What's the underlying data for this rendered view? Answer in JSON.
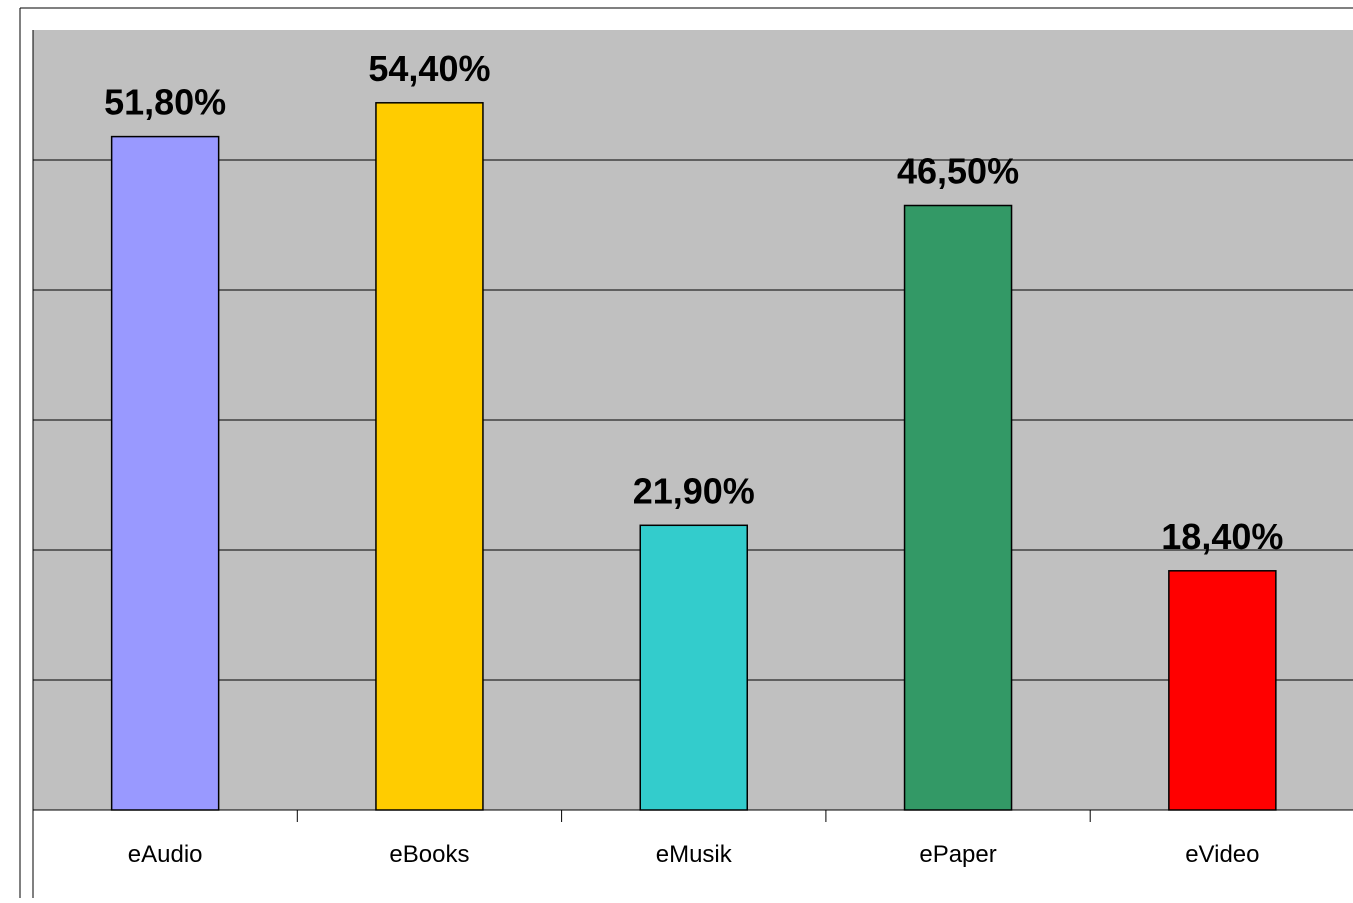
{
  "chart_data": {
    "type": "bar",
    "title": "",
    "xlabel": "",
    "ylabel": "",
    "categories": [
      "eAudio",
      "eBooks",
      "eMusik",
      "ePaper",
      "eVideo"
    ],
    "values": [
      51.8,
      54.4,
      21.9,
      46.5,
      18.4
    ],
    "data_labels": [
      "51,80%",
      "54,40%",
      "21,90%",
      "46,50%",
      "18,40%"
    ],
    "bar_colors": [
      "#9999FF",
      "#FFCC00",
      "#33CCCC",
      "#339966",
      "#FF0000"
    ],
    "ylim": [
      0,
      60
    ],
    "grid": true,
    "legend": "none"
  },
  "colors": {
    "plot_background": "#C0C0C0",
    "grid_line": "#000000",
    "bar_outline": "#000000"
  }
}
